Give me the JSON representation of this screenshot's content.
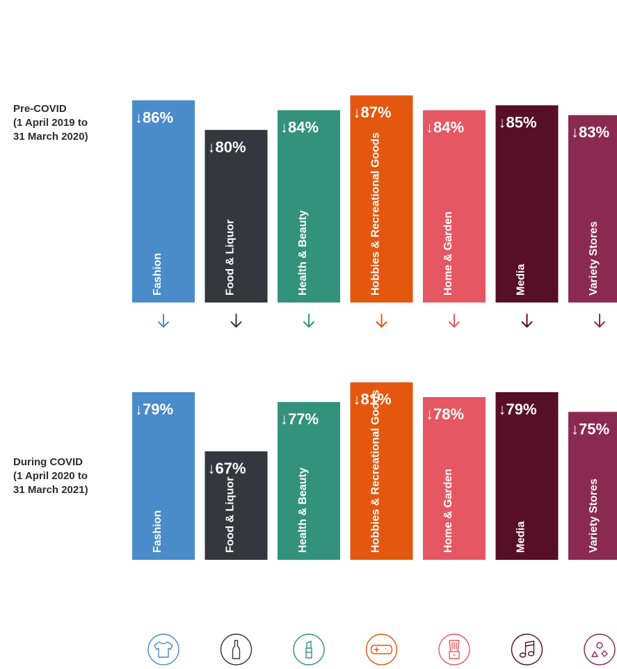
{
  "chart_data": {
    "type": "bar",
    "arrow_glyph": "↓",
    "ylim": [
      0,
      100
    ],
    "categories": [
      "Fashion",
      "Food & Liquor",
      "Health & Beauty",
      "Hobbies & Recreational Goods",
      "Home & Garden",
      "Media",
      "Variety Stores"
    ],
    "colors": [
      "#4a8bca",
      "#36363e",
      "#33927b",
      "#e4570f",
      "#e55863",
      "#570e27",
      "#8a2a50"
    ],
    "icons": [
      "tshirt-icon",
      "bottle-icon",
      "lipstick-icon",
      "gamepad-icon",
      "blender-icon",
      "music-note-icon",
      "shapes-icon"
    ],
    "series": [
      {
        "name": "Pre-COVID\n(1 April 2019 to\n31 March 2020)",
        "values": [
          86,
          80,
          84,
          87,
          84,
          85,
          83
        ]
      },
      {
        "name": "During COVID\n(1 April 2020 to\n31 March 2021)",
        "values": [
          79,
          67,
          77,
          81,
          78,
          79,
          75
        ]
      }
    ]
  }
}
